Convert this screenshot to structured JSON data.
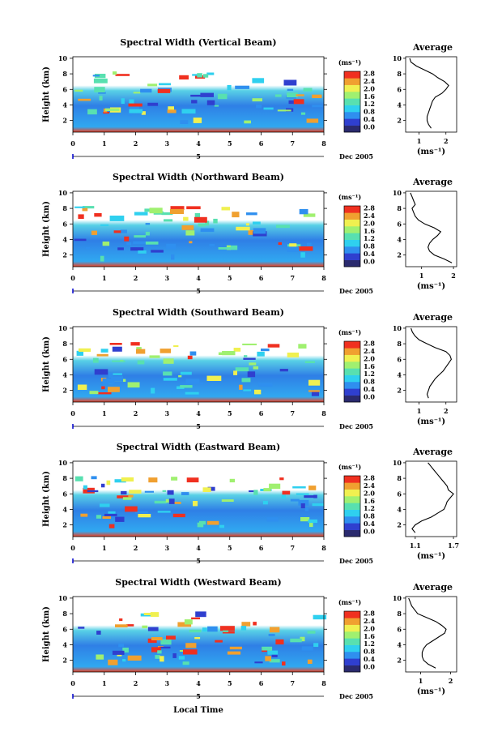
{
  "chart_data": {
    "type": "heatmap",
    "x_label": "Local Time",
    "colorbar": {
      "unit_label": "(ms⁻¹)",
      "tick_labels": [
        "0.0",
        "0.4",
        "0.8",
        "1.2",
        "1.6",
        "2.0",
        "2.4",
        "2.8"
      ],
      "colors": [
        "#2a2a6e",
        "#2f3fcf",
        "#2f8fef",
        "#2fd0ef",
        "#58e0b0",
        "#a0f070",
        "#f0f050",
        "#f0a030",
        "#f03020"
      ]
    },
    "panels": [
      {
        "title": "Spectral Width (Vertical Beam)",
        "ylabel": "Height (km)",
        "y_ticks": [
          "2",
          "4",
          "6",
          "8",
          "10"
        ],
        "x_ticks": [
          "0",
          "1",
          "2",
          "3",
          "4",
          "5",
          "6",
          "7",
          "8"
        ],
        "date_label": "Dec 2005",
        "date_marker": "5",
        "colorbar_ticks": [
          "0.0",
          "0.4",
          "0.8",
          "1.2",
          "1.6",
          "2.0",
          "2.4",
          "2.8"
        ],
        "average": {
          "title": "Average",
          "x_ticks": [
            "1",
            "2"
          ],
          "x_range": [
            0.5,
            2.4
          ],
          "xlabel": "(ms⁻¹)",
          "height_km": [
            1.0,
            1.5,
            2.0,
            2.5,
            3.0,
            3.5,
            4.0,
            4.5,
            5.0,
            5.5,
            6.0,
            6.5,
            7.0,
            7.5,
            8.0,
            8.5,
            9.0,
            9.5,
            10.0
          ],
          "values": [
            1.45,
            1.35,
            1.3,
            1.3,
            1.35,
            1.4,
            1.45,
            1.5,
            1.6,
            1.85,
            2.0,
            2.1,
            1.95,
            1.7,
            1.5,
            1.2,
            0.9,
            0.7,
            0.65
          ]
        }
      },
      {
        "title": "Spectral Width (Northward Beam)",
        "ylabel": "Height (km)",
        "y_ticks": [
          "2",
          "4",
          "6",
          "8",
          "10"
        ],
        "x_ticks": [
          "0",
          "1",
          "2",
          "3",
          "4",
          "5",
          "6",
          "7",
          "8"
        ],
        "date_label": "Dec 2005",
        "date_marker": "5",
        "colorbar_ticks": [
          "0.0",
          "0.4",
          "0.8",
          "1.2",
          "1.6",
          "2.0",
          "2.4",
          "2.8"
        ],
        "average": {
          "title": "Average",
          "x_ticks": [
            "1",
            "2"
          ],
          "x_range": [
            0.5,
            2.1
          ],
          "xlabel": "(ms⁻¹)",
          "height_km": [
            1.0,
            1.5,
            2.0,
            2.5,
            3.0,
            3.5,
            4.0,
            4.5,
            5.0,
            5.5,
            6.0,
            6.5,
            7.0,
            7.5,
            8.0,
            8.5,
            9.0,
            9.5,
            10.0
          ],
          "values": [
            1.95,
            1.7,
            1.4,
            1.25,
            1.2,
            1.25,
            1.35,
            1.5,
            1.6,
            1.4,
            1.1,
            0.9,
            0.8,
            0.75,
            0.7,
            0.8,
            0.75,
            0.7,
            0.65
          ]
        }
      },
      {
        "title": "Spectral Width (Southward Beam)",
        "ylabel": "Height (km)",
        "y_ticks": [
          "2",
          "4",
          "6",
          "8",
          "10"
        ],
        "x_ticks": [
          "0",
          "1",
          "2",
          "3",
          "4",
          "5",
          "6",
          "7",
          "8"
        ],
        "date_label": "Dec 2005",
        "date_marker": "5",
        "colorbar_ticks": [
          "0.0",
          "0.4",
          "0.8",
          "1.2",
          "1.6",
          "2.0",
          "2.4",
          "2.8"
        ],
        "average": {
          "title": "Average",
          "x_ticks": [
            "1",
            "2"
          ],
          "x_range": [
            0.5,
            2.4
          ],
          "xlabel": "(ms⁻¹)",
          "height_km": [
            1.0,
            1.5,
            2.0,
            2.5,
            3.0,
            3.5,
            4.0,
            4.5,
            5.0,
            5.5,
            6.0,
            6.5,
            7.0,
            7.5,
            8.0,
            8.5,
            9.0,
            9.5,
            10.0
          ],
          "values": [
            1.35,
            1.3,
            1.35,
            1.4,
            1.5,
            1.6,
            1.75,
            1.9,
            2.0,
            2.1,
            2.2,
            2.15,
            2.0,
            1.6,
            1.3,
            1.0,
            0.85,
            0.75,
            0.7
          ]
        }
      },
      {
        "title": "Spectral Width (Eastward Beam)",
        "ylabel": "Height (km)",
        "y_ticks": [
          "2",
          "4",
          "6",
          "8",
          "10"
        ],
        "x_ticks": [
          "0",
          "1",
          "2",
          "3",
          "4",
          "5",
          "6",
          "7",
          "8"
        ],
        "date_label": "Dec 2005",
        "date_marker": "5",
        "colorbar_ticks": [
          "0.0",
          "0.4",
          "0.8",
          "1.2",
          "1.6",
          "2.0",
          "2.4",
          "2.8"
        ],
        "average": {
          "title": "Average",
          "x_ticks": [
            "1.1",
            "1.7"
          ],
          "x_range": [
            0.95,
            1.75
          ],
          "xlabel": "(ms⁻¹)",
          "height_km": [
            1.0,
            1.5,
            2.0,
            2.5,
            3.0,
            3.5,
            4.0,
            4.5,
            5.0,
            5.5,
            6.0,
            6.5,
            7.0,
            7.5,
            8.0,
            8.5,
            9.0,
            9.5,
            10.0
          ],
          "values": [
            1.1,
            1.05,
            1.1,
            1.2,
            1.35,
            1.45,
            1.55,
            1.58,
            1.6,
            1.65,
            1.7,
            1.62,
            1.6,
            1.55,
            1.5,
            1.45,
            1.4,
            1.35,
            1.3
          ]
        }
      },
      {
        "title": "Spectral Width (Westward Beam)",
        "ylabel": "Height (km)",
        "y_ticks": [
          "2",
          "4",
          "6",
          "8",
          "10"
        ],
        "x_ticks": [
          "0",
          "1",
          "2",
          "3",
          "4",
          "5",
          "6",
          "7",
          "8"
        ],
        "date_label": "Dec 2005",
        "date_marker": "5",
        "colorbar_ticks": [
          "0.0",
          "0.4",
          "0.8",
          "1.2",
          "1.6",
          "2.0",
          "2.4",
          "2.8"
        ],
        "average": {
          "title": "Average",
          "x_ticks": [
            "1",
            "2"
          ],
          "x_range": [
            0.5,
            2.2
          ],
          "xlabel": "(ms⁻¹)",
          "height_km": [
            1.0,
            1.5,
            2.0,
            2.5,
            3.0,
            3.5,
            4.0,
            4.5,
            5.0,
            5.5,
            6.0,
            6.5,
            7.0,
            7.5,
            8.0,
            8.5,
            9.0,
            9.5,
            10.0
          ],
          "values": [
            1.5,
            1.25,
            1.1,
            1.05,
            1.05,
            1.1,
            1.2,
            1.4,
            1.6,
            1.8,
            1.85,
            1.7,
            1.5,
            1.2,
            0.9,
            0.8,
            0.7,
            0.65,
            0.6
          ]
        }
      }
    ]
  }
}
